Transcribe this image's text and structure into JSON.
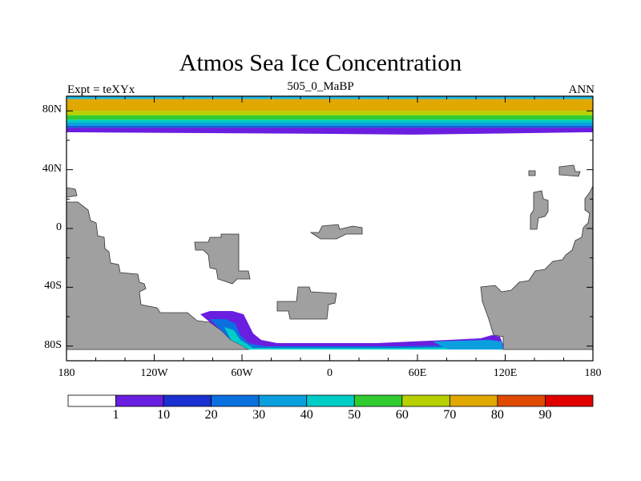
{
  "title": "Atmos Sea Ice Concentration",
  "left_string": "Expt = teXYx",
  "center_string": "505_0_MaBP",
  "right_string": "ANN",
  "map": {
    "projection": "cylindrical-equidistant",
    "lon_range": [
      -180,
      180
    ],
    "lat_range": [
      -90,
      90
    ],
    "land_color": "#a0a0a0",
    "ocean_color": "#ffffff",
    "x_ticks": [
      {
        "lon": -180,
        "label": "180"
      },
      {
        "lon": -120,
        "label": "120W"
      },
      {
        "lon": -60,
        "label": "60W"
      },
      {
        "lon": 0,
        "label": "0"
      },
      {
        "lon": 60,
        "label": "60E"
      },
      {
        "lon": 120,
        "label": "120E"
      },
      {
        "lon": 180,
        "label": "180"
      }
    ],
    "y_ticks": [
      {
        "lat": 80,
        "label": "80N"
      },
      {
        "lat": 40,
        "label": "40N"
      },
      {
        "lat": 0,
        "label": "0"
      },
      {
        "lat": -40,
        "label": "40S"
      },
      {
        "lat": -80,
        "label": "80S"
      }
    ],
    "arctic_ice_bands": [
      {
        "lat_top": 90,
        "lat_bottom": 88,
        "color": "#1fb3e0"
      },
      {
        "lat_top": 88,
        "lat_bottom": 80,
        "color": "#e0a800"
      },
      {
        "lat_top": 80,
        "lat_bottom": 77,
        "color": "#b8d000"
      },
      {
        "lat_top": 77,
        "lat_bottom": 74,
        "color": "#30cc30"
      },
      {
        "lat_top": 74,
        "lat_bottom": 72,
        "color": "#00ccc0"
      },
      {
        "lat_top": 72,
        "lat_bottom": 70,
        "color": "#0aa0e0"
      },
      {
        "lat_top": 70,
        "lat_bottom": 68.5,
        "color": "#1060d8"
      },
      {
        "lat_top": 68.5,
        "lat_bottom": 65.5,
        "color": "#6a1ee0"
      }
    ]
  },
  "colorbar": {
    "colors": [
      "#ffffff",
      "#6a1ee0",
      "#1a30d0",
      "#0a70e0",
      "#0aa0e0",
      "#00ccc8",
      "#30cc30",
      "#b8d000",
      "#e0a800",
      "#e04a00",
      "#e00000"
    ],
    "labels": [
      "1",
      "10",
      "20",
      "30",
      "40",
      "50",
      "60",
      "70",
      "80",
      "90"
    ]
  }
}
